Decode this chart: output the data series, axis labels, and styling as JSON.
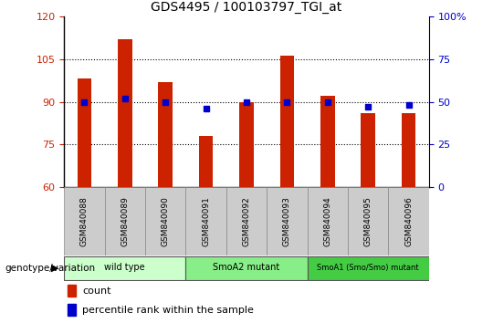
{
  "title": "GDS4495 / 100103797_TGI_at",
  "samples": [
    "GSM840088",
    "GSM840089",
    "GSM840090",
    "GSM840091",
    "GSM840092",
    "GSM840093",
    "GSM840094",
    "GSM840095",
    "GSM840096"
  ],
  "counts": [
    98,
    112,
    97,
    78,
    90,
    106,
    92,
    86,
    86
  ],
  "percentiles": [
    50,
    52,
    50,
    46,
    50,
    50,
    50,
    47,
    48
  ],
  "ylim_left": [
    60,
    120
  ],
  "ylim_right": [
    0,
    100
  ],
  "yticks_left": [
    60,
    75,
    90,
    105,
    120
  ],
  "yticks_right": [
    0,
    25,
    50,
    75,
    100
  ],
  "ytick_labels_right": [
    "0",
    "25",
    "50",
    "75",
    "100%"
  ],
  "bar_color": "#cc2200",
  "dot_color": "#0000cc",
  "groups": [
    {
      "label": "wild type",
      "start": 0,
      "end": 2,
      "color": "#ccffcc"
    },
    {
      "label": "SmoA2 mutant",
      "start": 3,
      "end": 5,
      "color": "#88ee88"
    },
    {
      "label": "SmoA1 (Smo/Smo) mutant",
      "start": 6,
      "end": 8,
      "color": "#44cc44"
    }
  ],
  "xlabel_group": "genotype/variation",
  "legend_count_label": "count",
  "legend_percentile_label": "percentile rank within the sample",
  "tick_area_color": "#cccccc",
  "n_samples": 9
}
